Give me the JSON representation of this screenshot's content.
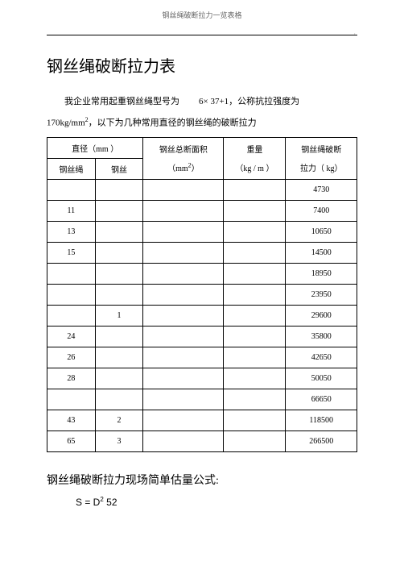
{
  "header": "钢丝绳破断拉力一览表格",
  "corner": "·",
  "title": "钢丝绳破断拉力表",
  "intro_part1": "我企业常用起重钢丝绳型号为",
  "intro_part2": "6× 37+1，公称抗拉强度为",
  "intro2_part1": "170kg/mm",
  "intro2_sup": "2",
  "intro2_part2": "，以下为几种常用直径的钢丝绳的破断拉力",
  "table": {
    "header_dia": "直径（mm ）",
    "header_area_l1": "钢丝总断面积",
    "header_area_l2": "（mm",
    "header_area_sup": "2",
    "header_area_l2b": "）",
    "header_weight_l1": "重量",
    "header_weight_l2": "（kg / m ）",
    "header_force_l1": "钢丝绳破断",
    "header_force_l2": "拉力（ kg）",
    "subhead_rope": "钢丝绳",
    "subhead_wire": "钢丝",
    "rows": [
      {
        "rope": "",
        "wire": "",
        "area": "",
        "weight": "",
        "force": "4730"
      },
      {
        "rope": "11",
        "wire": "",
        "area": "",
        "weight": "",
        "force": "7400"
      },
      {
        "rope": "13",
        "wire": "",
        "area": "",
        "weight": "",
        "force": "10650"
      },
      {
        "rope": "15",
        "wire": "",
        "area": "",
        "weight": "",
        "force": "14500"
      },
      {
        "rope": "",
        "wire": "",
        "area": "",
        "weight": "",
        "force": "18950"
      },
      {
        "rope": "",
        "wire": "",
        "area": "",
        "weight": "",
        "force": "23950"
      },
      {
        "rope": "",
        "wire": "1",
        "area": "",
        "weight": "",
        "force": "29600"
      },
      {
        "rope": "24",
        "wire": "",
        "area": "",
        "weight": "",
        "force": "35800"
      },
      {
        "rope": "26",
        "wire": "",
        "area": "",
        "weight": "",
        "force": "42650"
      },
      {
        "rope": "28",
        "wire": "",
        "area": "",
        "weight": "",
        "force": "50050"
      },
      {
        "rope": "",
        "wire": "",
        "area": "",
        "weight": "",
        "force": "66650"
      },
      {
        "rope": "43",
        "wire": "2",
        "area": "",
        "weight": "",
        "force": "118500"
      },
      {
        "rope": "65",
        "wire": "3",
        "area": "",
        "weight": "",
        "force": "266500"
      }
    ]
  },
  "formula_title": "钢丝绳破断拉力现场简单估量公式:",
  "formula_part1": "S = D",
  "formula_sup": "2",
  "formula_part2": "  52"
}
